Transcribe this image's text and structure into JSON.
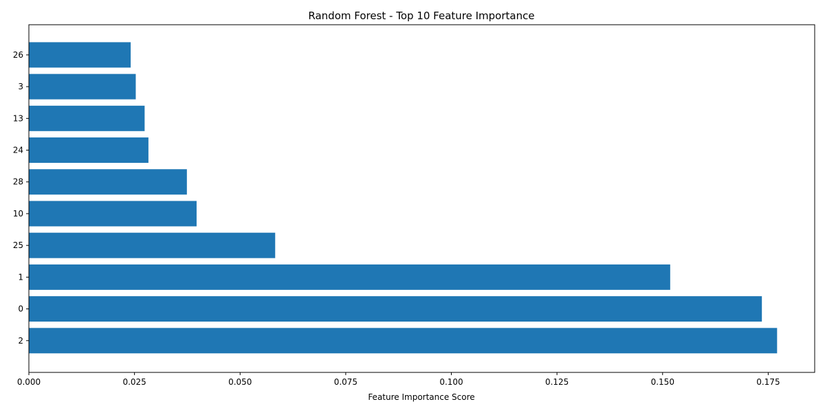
{
  "chart_data": {
    "type": "bar",
    "orientation": "horizontal",
    "title": "Random Forest - Top 10 Feature Importance",
    "xlabel": "Feature Importance Score",
    "ylabel": "",
    "categories": [
      "2",
      "0",
      "1",
      "25",
      "10",
      "28",
      "24",
      "13",
      "3",
      "26"
    ],
    "values": [
      0.1771,
      0.1735,
      0.1518,
      0.0583,
      0.0397,
      0.0374,
      0.0283,
      0.0274,
      0.0253,
      0.0241
    ],
    "xlim": [
      0,
      0.186
    ],
    "xticks": [
      0.0,
      0.025,
      0.05,
      0.075,
      0.1,
      0.125,
      0.15,
      0.175
    ],
    "xtick_labels": [
      "0.000",
      "0.025",
      "0.050",
      "0.075",
      "0.100",
      "0.125",
      "0.150",
      "0.175"
    ],
    "grid": false,
    "bar_color": "#1f77b4"
  }
}
